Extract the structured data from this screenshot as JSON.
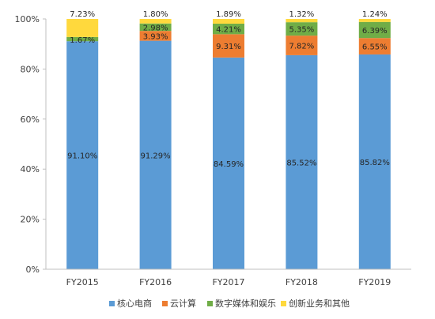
{
  "chart_data": {
    "type": "bar",
    "stacked": true,
    "categories": [
      "FY2015",
      "FY2016",
      "FY2017",
      "FY2018",
      "FY2019"
    ],
    "ylim": [
      0,
      100
    ],
    "yticks": [
      "0%",
      "20%",
      "40%",
      "60%",
      "80%",
      "100%"
    ],
    "grid": false,
    "legend_position": "bottom",
    "series": [
      {
        "name": "核心电商",
        "color": "#5b9bd5",
        "values": [
          91.1,
          91.29,
          84.59,
          85.52,
          85.82
        ],
        "labels": [
          "91.10%",
          "91.29%",
          "84.59%",
          "85.52%",
          "85.82%"
        ]
      },
      {
        "name": "云计算",
        "color": "#ed7d31",
        "values": [
          0,
          3.93,
          9.31,
          7.82,
          6.55
        ],
        "labels": [
          "",
          "3.93%",
          "9.31%",
          "7.82%",
          "6.55%"
        ]
      },
      {
        "name": "数字媒体和娱乐",
        "color": "#70ad47",
        "values": [
          1.67,
          2.98,
          4.21,
          5.35,
          6.39
        ],
        "labels": [
          "1.67%",
          "2.98%",
          "4.21%",
          "5.35%",
          "6.39%"
        ]
      },
      {
        "name": "创新业务和其他",
        "color": "#ffd93d",
        "values": [
          7.23,
          1.8,
          1.89,
          1.32,
          1.24
        ],
        "labels": [
          "7.23%",
          "1.80%",
          "1.89%",
          "1.32%",
          "1.24%"
        ]
      }
    ]
  }
}
